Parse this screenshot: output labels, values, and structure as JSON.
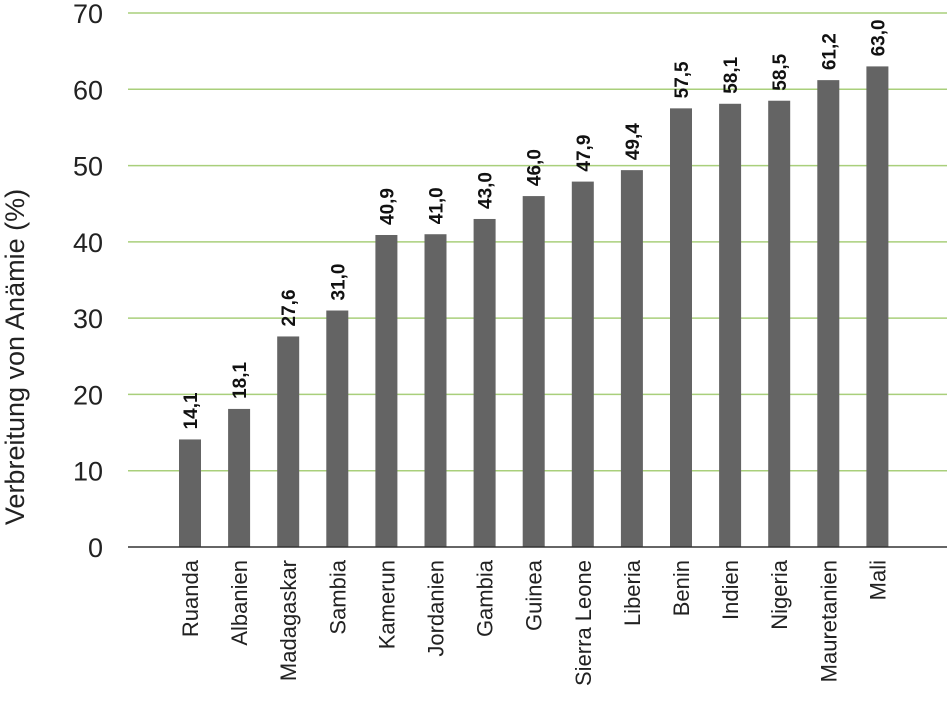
{
  "chart_data": {
    "type": "bar",
    "title": "",
    "xlabel": "",
    "ylabel": "Verbreitung von Anämie (%)",
    "ylim": [
      0,
      70
    ],
    "yticks": [
      0,
      10,
      20,
      30,
      40,
      50,
      60,
      70
    ],
    "grid": true,
    "categories": [
      "Ruanda",
      "Albanien",
      "Madagaskar",
      "Sambia",
      "Kamerun",
      "Jordanien",
      "Gambia",
      "Guinea",
      "Sierra Leone",
      "Liberia",
      "Benin",
      "Indien",
      "Nigeria",
      "Mauretanien",
      "Mali"
    ],
    "values": [
      14.1,
      18.1,
      27.6,
      31.0,
      40.9,
      41.0,
      43.0,
      46.0,
      47.9,
      49.4,
      57.5,
      58.1,
      58.5,
      61.2,
      63.0
    ],
    "data_labels": [
      "14,1",
      "18,1",
      "27,6",
      "31,0",
      "40,9",
      "41,0",
      "43,0",
      "46,0",
      "47,9",
      "49,4",
      "57,5",
      "58,1",
      "58,5",
      "61,2",
      "63,0"
    ],
    "colors": {
      "bar": "#646464",
      "grid": "#a9cf7b",
      "axis": "#333333"
    }
  }
}
